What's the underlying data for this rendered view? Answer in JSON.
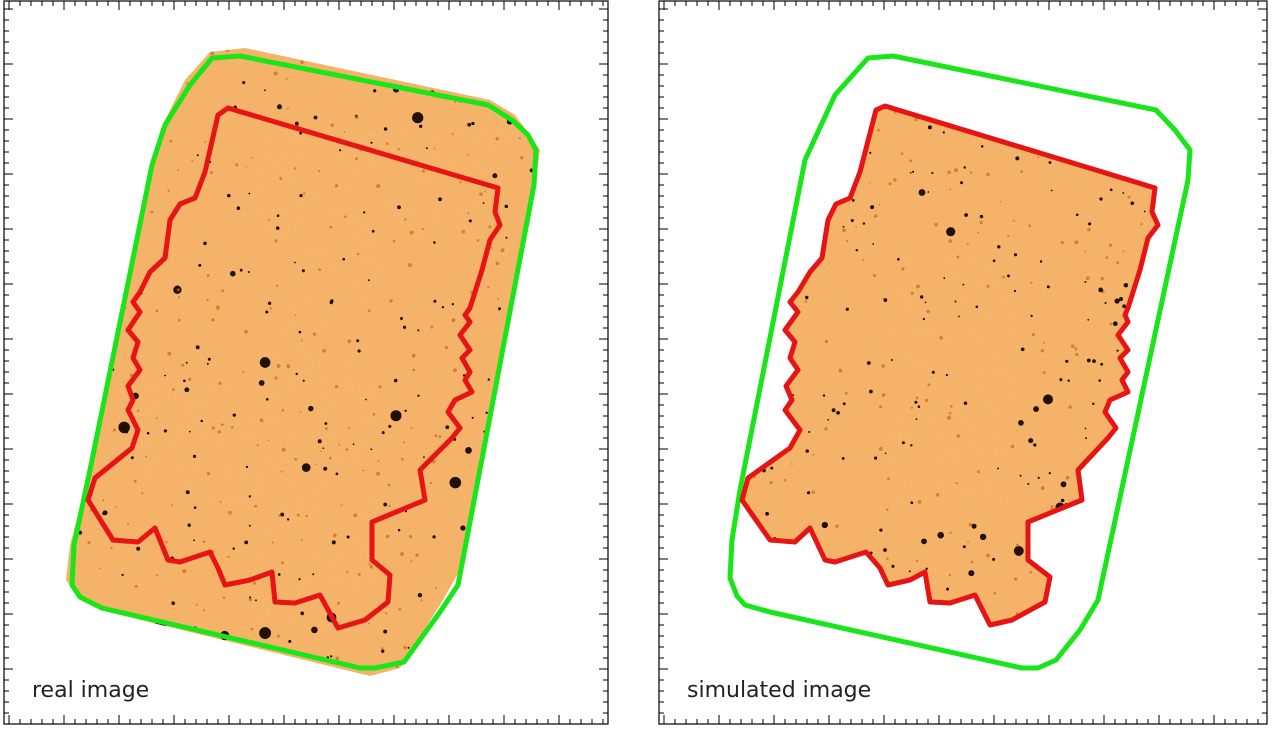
{
  "panels": [
    {
      "id": "real",
      "label": "real image"
    },
    {
      "id": "simulated",
      "label": "simulated image"
    }
  ],
  "colors": {
    "background": "#ffffff",
    "image_base": "#f7b56d",
    "image_light": "#fbd9ad",
    "image_dark": "#c96a18",
    "star": "#140700",
    "outer_footprint": "#19e619",
    "inner_footprint": "#e61414",
    "frame": "#000000"
  }
}
